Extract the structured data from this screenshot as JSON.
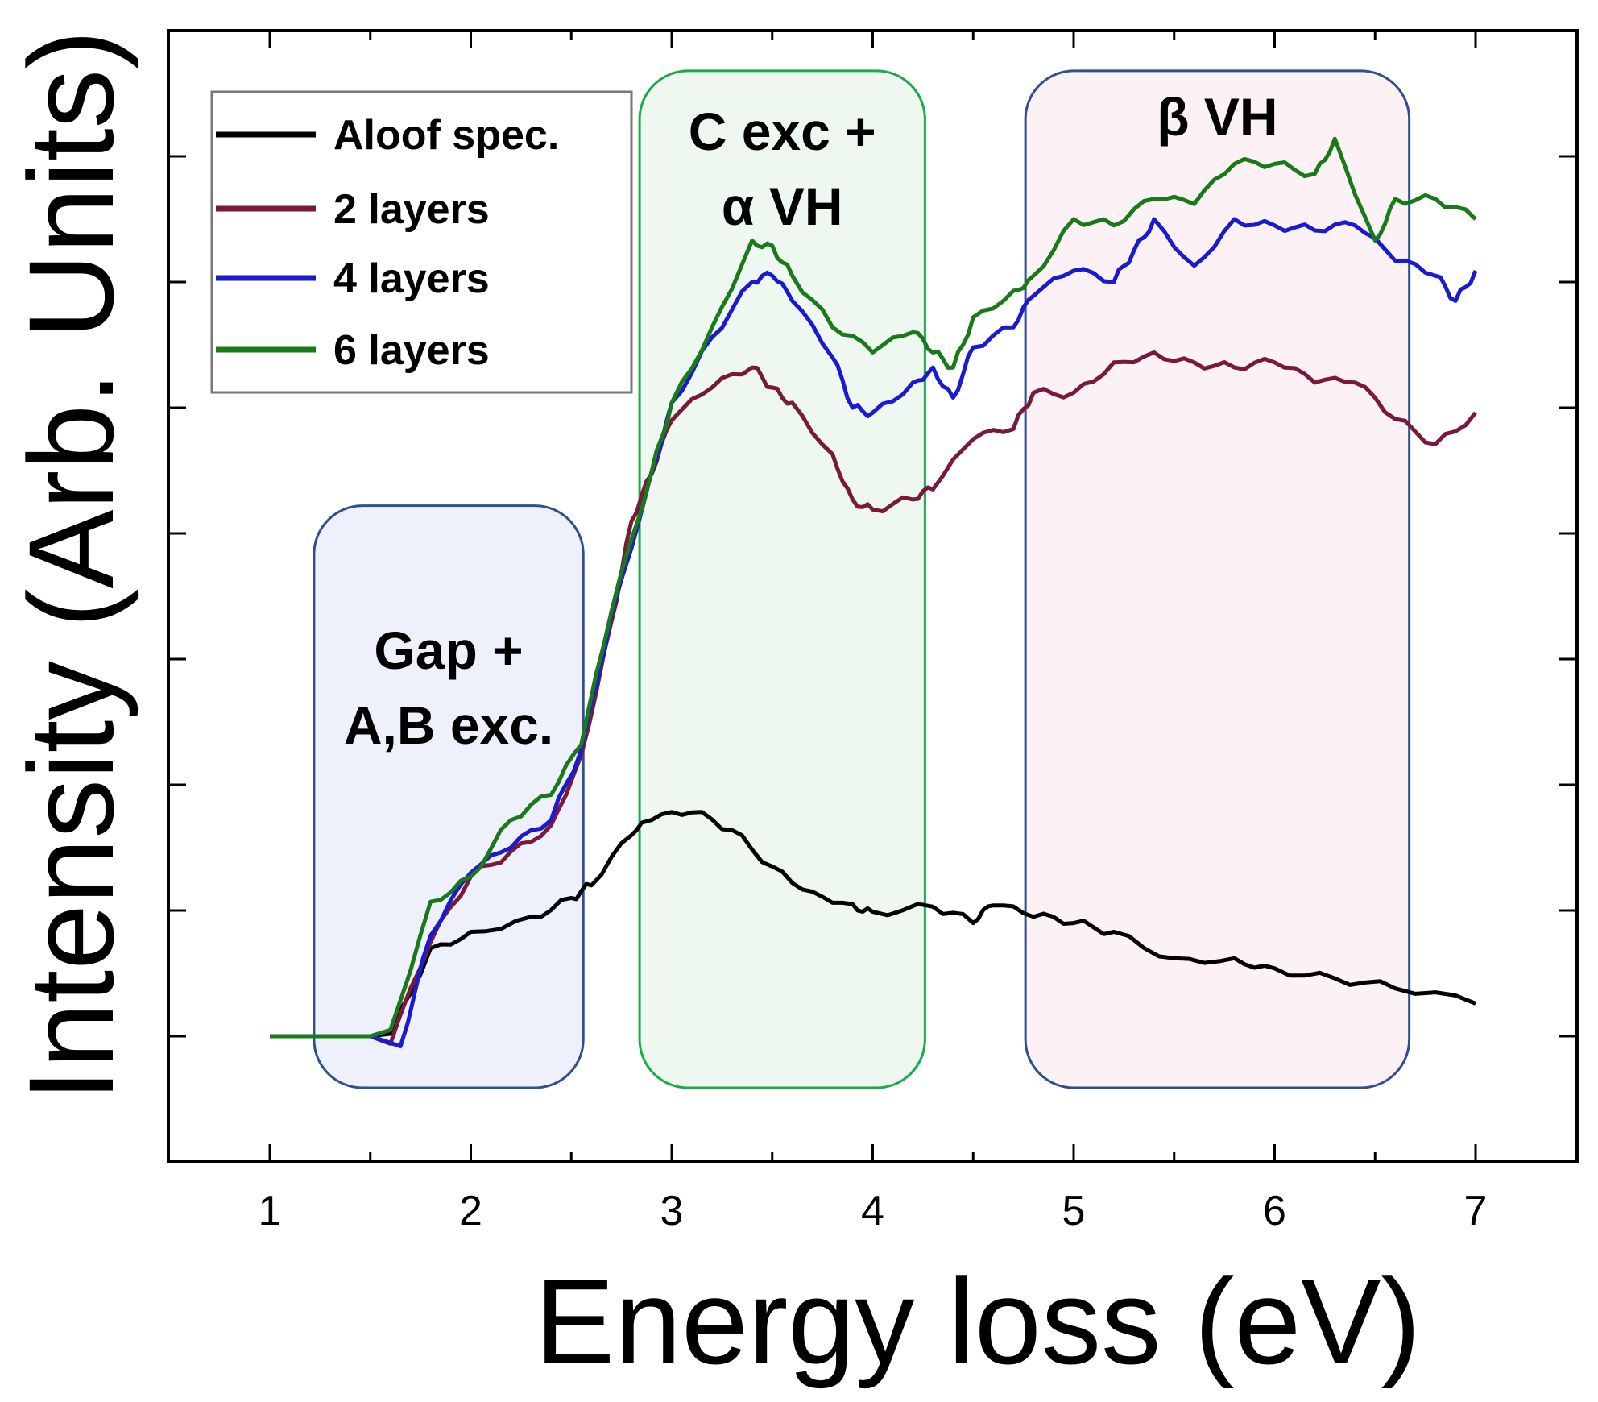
{
  "chart_data": {
    "type": "line",
    "title": "",
    "xlabel": "Energy loss (eV)",
    "ylabel": "Intensity (Arb. Units)",
    "xlim": [
      1,
      7
    ],
    "ylim": [
      -1,
      8
    ],
    "xticks": [
      "1",
      "2",
      "3",
      "4",
      "5",
      "6",
      "7"
    ],
    "grid": false,
    "legend_placement": "top-left",
    "series": [
      {
        "name": "Aloof spec.",
        "color": "#000000",
        "x": [
          1,
          1.5,
          1.6,
          1.8,
          2.0,
          2.3,
          2.5,
          2.6,
          2.8,
          2.9,
          3.1,
          3.3,
          3.5,
          3.7,
          3.9,
          4.0,
          4.3,
          4.5,
          4.6,
          4.8,
          5.0,
          5.2,
          5.5,
          5.8,
          6.0,
          6.3,
          6.6,
          7.0
        ],
        "y": [
          0,
          0,
          0.02,
          0.7,
          0.83,
          0.95,
          1.1,
          1.2,
          1.6,
          1.72,
          1.78,
          1.64,
          1.35,
          1.15,
          1.05,
          0.99,
          1.03,
          0.9,
          1.04,
          0.95,
          0.9,
          0.83,
          0.62,
          0.62,
          0.54,
          0.46,
          0.38,
          0.26
        ]
      },
      {
        "name": "2 layers",
        "color": "#7a1a3a",
        "x": [
          1,
          1.5,
          1.6,
          1.8,
          2.0,
          2.2,
          2.4,
          2.55,
          2.7,
          2.8,
          2.9,
          3.0,
          3.2,
          3.4,
          3.5,
          3.6,
          3.8,
          3.9,
          4.0,
          4.2,
          4.3,
          4.5,
          4.7,
          4.8,
          5.0,
          5.2,
          5.4,
          5.6,
          5.8,
          6.0,
          6.2,
          6.4,
          6.6,
          6.8,
          7.0
        ],
        "y": [
          0,
          0,
          -0.06,
          0.75,
          1.27,
          1.47,
          1.68,
          2.24,
          3.3,
          4.1,
          4.47,
          4.9,
          5.16,
          5.32,
          5.16,
          5.04,
          4.63,
          4.27,
          4.19,
          4.27,
          4.35,
          4.75,
          4.83,
          5.12,
          5.12,
          5.36,
          5.44,
          5.36,
          5.32,
          5.36,
          5.2,
          5.2,
          4.91,
          4.71,
          4.96
        ]
      },
      {
        "name": "4 layers",
        "color": "#1a1ad0",
        "x": [
          1,
          1.5,
          1.65,
          1.8,
          2.0,
          2.2,
          2.4,
          2.55,
          2.7,
          2.9,
          3.0,
          3.2,
          3.4,
          3.5,
          3.6,
          3.8,
          3.9,
          4.0,
          4.2,
          4.3,
          4.4,
          4.5,
          4.7,
          4.8,
          5.0,
          5.2,
          5.3,
          5.4,
          5.6,
          5.8,
          6.0,
          6.2,
          6.4,
          6.6,
          6.8,
          6.9,
          7.0
        ],
        "y": [
          0,
          0,
          -0.08,
          0.8,
          1.3,
          1.5,
          1.72,
          2.28,
          3.35,
          4.49,
          5.04,
          5.56,
          6.0,
          6.05,
          5.85,
          5.4,
          5.0,
          4.96,
          5.2,
          5.32,
          5.08,
          5.48,
          5.64,
          5.89,
          6.09,
          6.0,
          6.25,
          6.5,
          6.13,
          6.5,
          6.45,
          6.41,
          6.45,
          6.17,
          6.05,
          5.85,
          6.09
        ]
      },
      {
        "name": "6 layers",
        "color": "#1a7a1a",
        "x": [
          1,
          1.5,
          1.6,
          1.8,
          2.0,
          2.2,
          2.4,
          2.55,
          2.7,
          2.9,
          3.0,
          3.2,
          3.4,
          3.5,
          3.6,
          3.8,
          4.0,
          4.2,
          4.3,
          4.4,
          4.5,
          4.7,
          4.8,
          5.0,
          5.2,
          5.4,
          5.6,
          5.8,
          6.0,
          6.2,
          6.3,
          6.5,
          6.6,
          6.8,
          7.0
        ],
        "y": [
          0,
          0,
          0.05,
          1.07,
          1.27,
          1.72,
          1.92,
          2.32,
          3.38,
          4.49,
          5.04,
          5.64,
          6.33,
          6.29,
          6.05,
          5.64,
          5.44,
          5.6,
          5.44,
          5.32,
          5.72,
          5.93,
          6.05,
          6.5,
          6.45,
          6.66,
          6.62,
          6.94,
          6.94,
          6.86,
          7.14,
          6.33,
          6.66,
          6.66,
          6.5
        ]
      }
    ],
    "annotations": [
      {
        "label_lines": [
          "Gap +",
          "A,B exc."
        ],
        "x_range": [
          1.22,
          2.56
        ],
        "y_range": [
          -0.41,
          4.22
        ],
        "fill": "#eef1fc",
        "stroke": "#2f4f8f"
      },
      {
        "label_lines": [
          "C exc +",
          "α VH"
        ],
        "x_range": [
          2.84,
          4.26
        ],
        "y_range": [
          -0.41,
          7.68
        ],
        "fill": "#eef8f0",
        "stroke": "#1aaa4a"
      },
      {
        "label_lines": [
          "β VH"
        ],
        "x_range": [
          4.76,
          6.67
        ],
        "y_range": [
          -0.41,
          7.68
        ],
        "fill": "#fcf1f4",
        "stroke": "#2f4f8f"
      }
    ]
  }
}
